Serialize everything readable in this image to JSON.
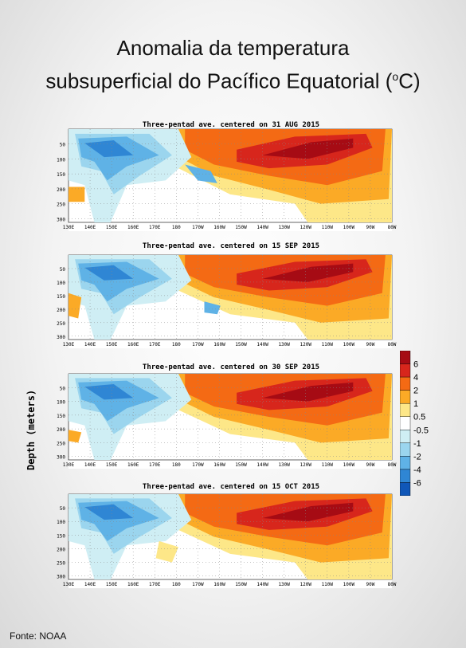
{
  "title": {
    "line1": "Anomalia da temperatura",
    "line2_prefix": "subsuperficial do Pacífico Equatorial (",
    "line2_sup": "o",
    "line2_suffix": "C)"
  },
  "source": "Fonte: NOAA",
  "colors": {
    "c6": "#a60b14",
    "c4": "#d7261c",
    "c2": "#f46a14",
    "c1": "#fbaa26",
    "c05": "#fde788",
    "w": "#ffffff",
    "m05": "#cfeef4",
    "m1": "#9bd5ee",
    "m2": "#5fb2e6",
    "m4": "#2f86d4",
    "m6": "#1057b8"
  },
  "chart_data": {
    "type": "heatmap",
    "ylabel": "Depth (meters)",
    "x_ticks": [
      "130E",
      "140E",
      "150E",
      "160E",
      "170E",
      "180",
      "170W",
      "160W",
      "150W",
      "140W",
      "130W",
      "120W",
      "110W",
      "100W",
      "90W",
      "80W"
    ],
    "y_ticks": [
      "50",
      "100",
      "150",
      "200",
      "250",
      "300"
    ],
    "ylim": [
      0,
      300
    ],
    "colorbar": {
      "labels": [
        "6",
        "4",
        "2",
        "1",
        "0.5",
        "-0.5",
        "-1",
        "-2",
        "-4",
        "-6"
      ],
      "levels": [
        6,
        4,
        2,
        1,
        0.5,
        -0.5,
        -1,
        -2,
        -4,
        -6
      ]
    },
    "panels": [
      {
        "title": "Three-pentad ave. centered on 31 AUG 2015"
      },
      {
        "title": "Three-pentad ave. centered on 15 SEP 2015"
      },
      {
        "title": "Three-pentad ave. centered on 30 SEP 2015"
      },
      {
        "title": "Three-pentad ave. centered on 15 OCT 2015"
      }
    ]
  }
}
